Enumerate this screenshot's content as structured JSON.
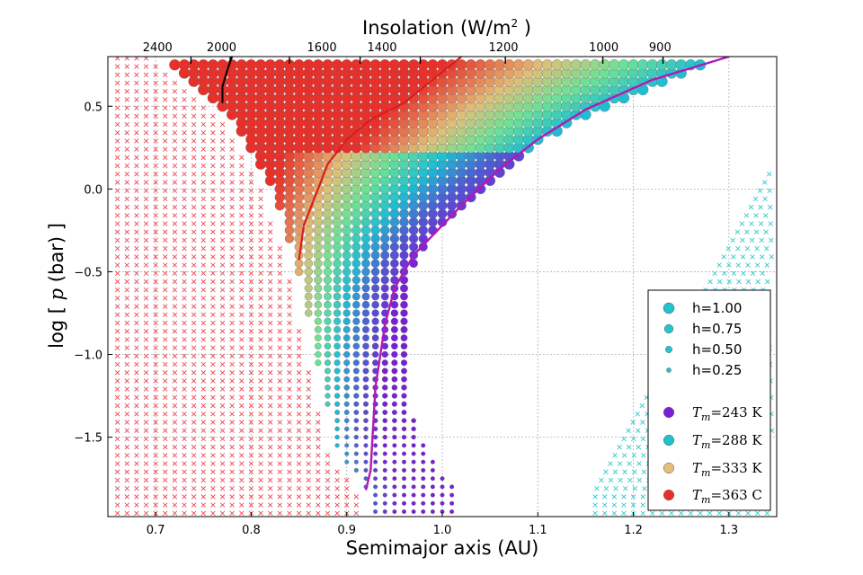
{
  "chart_data": {
    "type": "scatter",
    "title": "Insolation (W/m",
    "title_sup": "2",
    "title_close": " )",
    "xlabel": "Semimajor axis (AU)",
    "ylabel_prefix": "log [ ",
    "ylabel_var": "p",
    "ylabel_suffix": " (bar) ]",
    "xlim": [
      0.65,
      1.35
    ],
    "ylim": [
      -1.98,
      0.8
    ],
    "x_ticks": [
      0.7,
      0.8,
      0.9,
      1.0,
      1.1,
      1.2,
      1.3
    ],
    "x_tick_labels": [
      "0.7",
      "0.8",
      "0.9",
      "1.0",
      "1.1",
      "1.2",
      "1.3"
    ],
    "y_ticks": [
      0.5,
      0.0,
      -0.5,
      -1.0,
      -1.5
    ],
    "y_tick_labels": [
      "0.5",
      "0.0",
      "−0.5",
      "−1.0",
      "−1.5"
    ],
    "top_axis": {
      "ticks_a": [
        0.737,
        0.778,
        0.84,
        0.914,
        0.977,
        1.066,
        1.168,
        1.231
      ],
      "tick_labels": [
        "2400",
        "2000",
        "1600",
        "1400",
        "1200",
        "1000",
        "900"
      ],
      "label_positions_a": [
        0.702,
        0.769,
        0.874,
        0.937,
        1.064,
        1.169,
        1.228
      ]
    },
    "grid": true,
    "legend_position": "lower-right",
    "legend": {
      "sizes": [
        {
          "label": "h=1.00",
          "h": 1.0
        },
        {
          "label": "h=0.75",
          "h": 0.75
        },
        {
          "label": "h=0.50",
          "h": 0.5
        },
        {
          "label": "h=0.25",
          "h": 0.25
        }
      ],
      "temperatures": [
        {
          "sub": "m",
          "value": "243 K",
          "color": "#7a1fd6"
        },
        {
          "sub": "m",
          "value": "288 K",
          "color": "#1fc3cc"
        },
        {
          "sub": "m",
          "value": "333 K",
          "color": "#e2c07a"
        },
        {
          "sub": "m",
          "value": "363 C",
          "color": "#e8302a"
        }
      ],
      "temp_prefix": "T"
    },
    "colors": {
      "red_x": "#ea4a55",
      "cyan_x": "#35c9cf",
      "red_curve": "#d81e1e",
      "magenta_curve": "#b01ab5",
      "black_curve": "#000000",
      "grid": "#b0b0b0"
    },
    "grid_step": {
      "a": 0.01,
      "logp": 0.05
    },
    "series": [
      {
        "role": "habitable_points",
        "region_upper_logp": 0.8,
        "left_edge": [
          [
            0.705,
            0.8
          ],
          [
            0.75,
            0.6
          ],
          [
            0.79,
            0.35
          ],
          [
            0.82,
            0.05
          ],
          [
            0.845,
            -0.4
          ],
          [
            0.855,
            -0.6
          ],
          [
            0.87,
            -1.05
          ],
          [
            0.89,
            -1.55
          ],
          [
            0.905,
            -1.7
          ],
          [
            0.925,
            -1.85
          ]
        ],
        "right_edge": [
          [
            1.3,
            0.8
          ],
          [
            1.22,
            0.62
          ],
          [
            1.15,
            0.45
          ],
          [
            1.1,
            0.28
          ],
          [
            1.04,
            0.0
          ],
          [
            0.99,
            -0.28
          ],
          [
            0.97,
            -0.45
          ],
          [
            0.96,
            -0.6
          ],
          [
            0.965,
            -1.0
          ],
          [
            0.97,
            -1.4
          ],
          [
            0.99,
            -1.65
          ],
          [
            1.01,
            -1.8
          ]
        ],
        "note": ""
      },
      {
        "role": "red_boundary_curve",
        "points": [
          [
            0.85,
            -0.43
          ],
          [
            0.855,
            -0.22
          ],
          [
            0.87,
            0.0
          ],
          [
            0.88,
            0.15
          ],
          [
            0.9,
            0.3
          ],
          [
            0.925,
            0.42
          ],
          [
            0.96,
            0.52
          ],
          [
            0.99,
            0.66
          ],
          [
            1.02,
            0.8
          ]
        ]
      },
      {
        "role": "magenta_boundary_curve",
        "points": [
          [
            0.92,
            -1.82
          ],
          [
            0.925,
            -1.7
          ],
          [
            0.93,
            -1.2
          ],
          [
            0.94,
            -0.82
          ],
          [
            0.95,
            -0.6
          ],
          [
            0.97,
            -0.4
          ],
          [
            0.99,
            -0.28
          ],
          [
            1.02,
            -0.1
          ],
          [
            1.06,
            0.12
          ],
          [
            1.1,
            0.3
          ],
          [
            1.15,
            0.48
          ],
          [
            1.22,
            0.66
          ],
          [
            1.3,
            0.8
          ]
        ]
      },
      {
        "role": "black_curve",
        "points": [
          [
            0.77,
            0.52
          ],
          [
            0.77,
            0.62
          ],
          [
            0.775,
            0.72
          ],
          [
            0.78,
            0.8
          ]
        ]
      }
    ]
  }
}
